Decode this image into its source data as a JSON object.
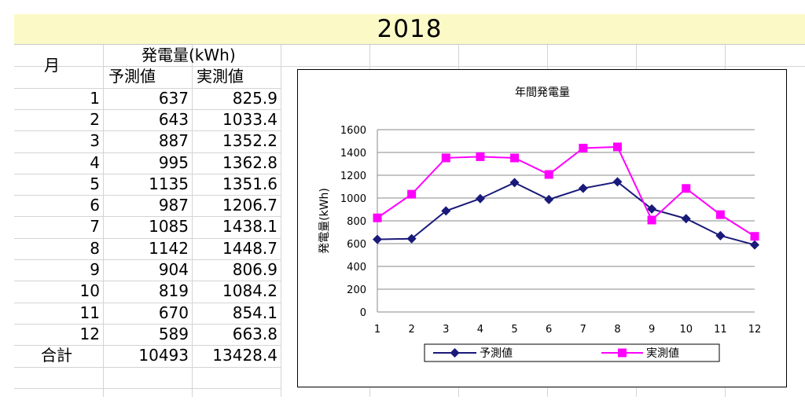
{
  "sheet": {
    "title": "2018",
    "header": {
      "month": "月",
      "group": "発電量(kWh)",
      "forecast": "予測値",
      "actual": "実測値"
    },
    "rows": [
      {
        "month": "1",
        "forecast": "637",
        "actual": "825.9"
      },
      {
        "month": "2",
        "forecast": "643",
        "actual": "1033.4"
      },
      {
        "month": "3",
        "forecast": "887",
        "actual": "1352.2"
      },
      {
        "month": "4",
        "forecast": "995",
        "actual": "1362.8"
      },
      {
        "month": "5",
        "forecast": "1135",
        "actual": "1351.6"
      },
      {
        "month": "6",
        "forecast": "987",
        "actual": "1206.7"
      },
      {
        "month": "7",
        "forecast": "1085",
        "actual": "1438.1"
      },
      {
        "month": "8",
        "forecast": "1142",
        "actual": "1448.7"
      },
      {
        "month": "9",
        "forecast": "904",
        "actual": "806.9"
      },
      {
        "month": "10",
        "forecast": "819",
        "actual": "1084.2"
      },
      {
        "month": "11",
        "forecast": "670",
        "actual": "854.1"
      },
      {
        "month": "12",
        "forecast": "589",
        "actual": "663.8"
      }
    ],
    "total": {
      "label": "合計",
      "forecast": "10493",
      "actual": "13428.4"
    }
  },
  "chart_data": {
    "type": "line",
    "title": "年間発電量",
    "xlabel": "",
    "ylabel": "発電量(kWh)",
    "x": [
      "1",
      "2",
      "3",
      "4",
      "5",
      "6",
      "7",
      "8",
      "9",
      "10",
      "11",
      "12"
    ],
    "ylim": [
      0,
      1600
    ],
    "yticks": [
      0,
      200,
      400,
      600,
      800,
      1000,
      1200,
      1400,
      1600
    ],
    "grid": true,
    "legend_position": "bottom",
    "series": [
      {
        "name": "予測値",
        "color": "#1a1a7a",
        "marker": "diamond",
        "values": [
          637,
          643,
          887,
          995,
          1135,
          987,
          1085,
          1142,
          904,
          819,
          670,
          589
        ]
      },
      {
        "name": "実測値",
        "color": "#ff00ff",
        "marker": "square",
        "values": [
          825.9,
          1033.4,
          1352.2,
          1362.8,
          1351.6,
          1206.7,
          1438.1,
          1448.7,
          806.9,
          1084.2,
          854.1,
          663.8
        ]
      }
    ]
  }
}
